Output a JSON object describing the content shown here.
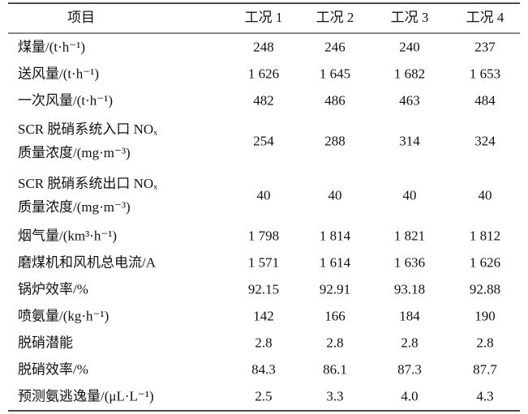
{
  "table": {
    "header": [
      "项目",
      "工况 1",
      "工况 2",
      "工况 3",
      "工况 4"
    ],
    "rows": [
      {
        "label": [
          "煤量/(t·h⁻¹)"
        ],
        "cells": [
          "248",
          "246",
          "240",
          "237"
        ]
      },
      {
        "label": [
          "送风量/(t·h⁻¹)"
        ],
        "cells": [
          "1 626",
          "1 645",
          "1 682",
          "1 653"
        ]
      },
      {
        "label": [
          "一次风量/(t·h⁻¹)"
        ],
        "cells": [
          "482",
          "486",
          "463",
          "484"
        ]
      },
      {
        "label": [
          "SCR 脱硝系统入口 NOₓ",
          "质量浓度/(mg·m⁻³)"
        ],
        "cells": [
          "254",
          "288",
          "314",
          "324"
        ]
      },
      {
        "label": [
          "SCR 脱硝系统出口 NOₓ",
          "质量浓度/(mg·m⁻³)"
        ],
        "cells": [
          "40",
          "40",
          "40",
          "40"
        ]
      },
      {
        "label": [
          "烟气量/(km³·h⁻¹)"
        ],
        "cells": [
          "1 798",
          "1 814",
          "1 821",
          "1 812"
        ]
      },
      {
        "label": [
          "磨煤机和风机总电流/A"
        ],
        "cells": [
          "1 571",
          "1 614",
          "1 636",
          "1 626"
        ]
      },
      {
        "label": [
          "锅炉效率/%"
        ],
        "cells": [
          "92.15",
          "92.91",
          "93.18",
          "92.88"
        ]
      },
      {
        "label": [
          "喷氨量/(kg·h⁻¹)"
        ],
        "cells": [
          "142",
          "166",
          "184",
          "190"
        ]
      },
      {
        "label": [
          "脱硝潜能"
        ],
        "cells": [
          "2.8",
          "2.8",
          "2.8",
          "2.8"
        ]
      },
      {
        "label": [
          "脱硝效率/%"
        ],
        "cells": [
          "84.3",
          "86.1",
          "87.3",
          "87.7"
        ]
      },
      {
        "label": [
          "预测氨逃逸量/(μL·L⁻¹)"
        ],
        "cells": [
          "2.5",
          "3.3",
          "4.0",
          "4.3"
        ]
      }
    ]
  }
}
